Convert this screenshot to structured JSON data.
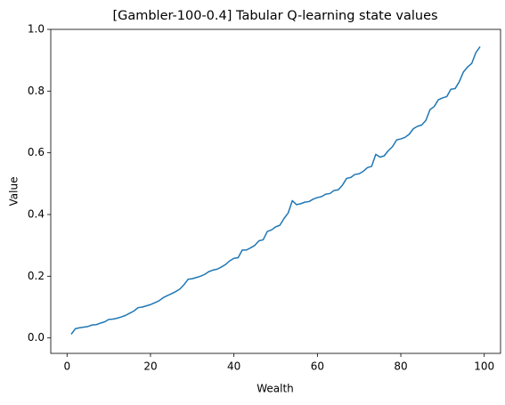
{
  "chart_data": {
    "type": "line",
    "title": "[Gambler-100-0.4] Tabular Q-learning state values",
    "x_label": "Wealth",
    "y_label": "Value",
    "x": [
      1,
      2,
      3,
      4,
      5,
      6,
      7,
      8,
      9,
      10,
      11,
      12,
      13,
      14,
      15,
      16,
      17,
      18,
      19,
      20,
      21,
      22,
      23,
      24,
      25,
      26,
      27,
      28,
      29,
      30,
      31,
      32,
      33,
      34,
      35,
      36,
      37,
      38,
      39,
      40,
      41,
      42,
      43,
      44,
      45,
      46,
      47,
      48,
      49,
      50,
      51,
      52,
      53,
      54,
      55,
      56,
      57,
      58,
      59,
      60,
      61,
      62,
      63,
      64,
      65,
      66,
      67,
      68,
      69,
      70,
      71,
      72,
      73,
      74,
      75,
      76,
      77,
      78,
      79,
      80,
      81,
      82,
      83,
      84,
      85,
      86,
      87,
      88,
      89,
      90,
      91,
      92,
      93,
      94,
      95,
      96,
      97,
      98,
      99
    ],
    "series": [
      {
        "name": "Value",
        "color": "#1f77b4",
        "values": [
          0.012,
          0.03,
          0.033,
          0.035,
          0.037,
          0.042,
          0.043,
          0.048,
          0.052,
          0.06,
          0.061,
          0.064,
          0.068,
          0.073,
          0.08,
          0.087,
          0.098,
          0.1,
          0.104,
          0.108,
          0.114,
          0.12,
          0.13,
          0.137,
          0.143,
          0.15,
          0.158,
          0.172,
          0.19,
          0.192,
          0.196,
          0.2,
          0.206,
          0.215,
          0.22,
          0.223,
          0.23,
          0.238,
          0.25,
          0.258,
          0.26,
          0.285,
          0.285,
          0.292,
          0.3,
          0.315,
          0.318,
          0.345,
          0.35,
          0.36,
          0.365,
          0.387,
          0.405,
          0.445,
          0.432,
          0.435,
          0.44,
          0.442,
          0.45,
          0.455,
          0.458,
          0.466,
          0.468,
          0.478,
          0.48,
          0.495,
          0.517,
          0.52,
          0.53,
          0.532,
          0.54,
          0.552,
          0.556,
          0.595,
          0.586,
          0.59,
          0.607,
          0.62,
          0.642,
          0.645,
          0.65,
          0.66,
          0.678,
          0.686,
          0.69,
          0.705,
          0.74,
          0.75,
          0.772,
          0.778,
          0.782,
          0.806,
          0.808,
          0.83,
          0.862,
          0.878,
          0.89,
          0.925,
          0.944
        ]
      }
    ],
    "xlim": [
      -3.9,
      103.9
    ],
    "ylim": [
      -0.05,
      1.0
    ],
    "xticks": [
      0,
      20,
      40,
      60,
      80,
      100
    ],
    "yticks": [
      {
        "value": 0,
        "label": "0.0"
      },
      {
        "value": 0.2,
        "label": "0.2"
      },
      {
        "value": 0.4,
        "label": "0.4"
      },
      {
        "value": 0.6,
        "label": "0.6"
      },
      {
        "value": 0.8,
        "label": "0.8"
      },
      {
        "value": 1.0,
        "label": "1.0"
      }
    ],
    "grid": false
  }
}
